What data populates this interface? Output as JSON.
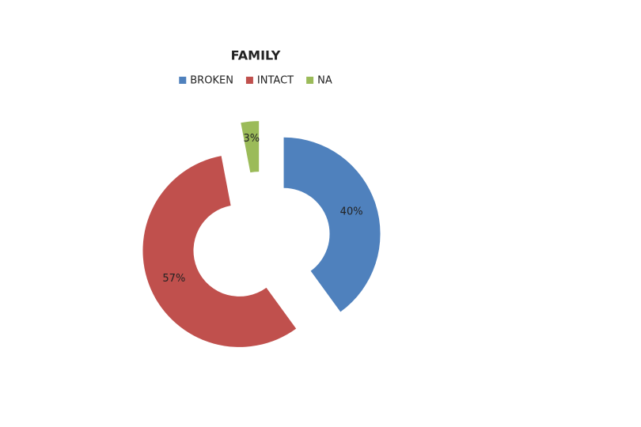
{
  "chart_data": {
    "type": "donut",
    "title": "FAMILY",
    "categories": [
      "BROKEN",
      "INTACT",
      "NA"
    ],
    "values": [
      40,
      57,
      3
    ],
    "value_labels": [
      "40%",
      "57%",
      "3%"
    ],
    "colors": [
      "#4f81bd",
      "#c0504d",
      "#9bbb59"
    ],
    "legend": "top"
  }
}
